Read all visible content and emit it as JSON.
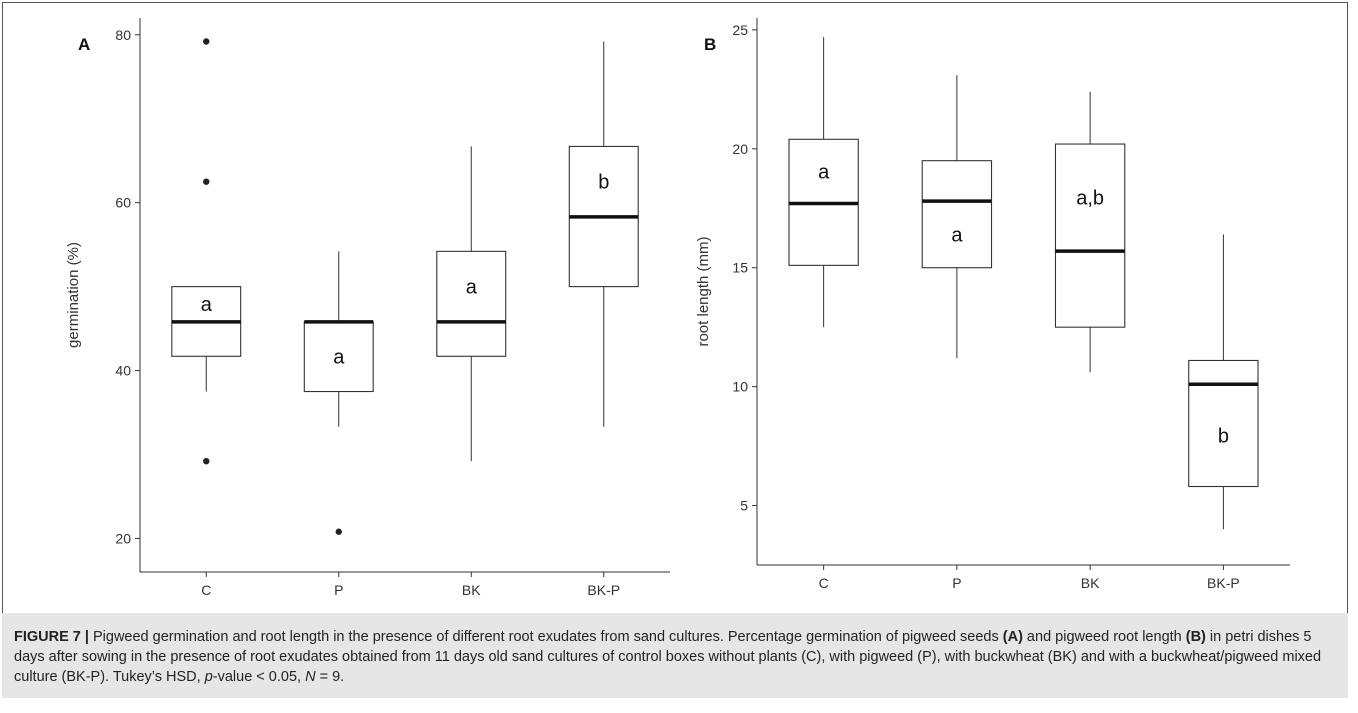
{
  "chart_data": [
    {
      "type": "box",
      "panel_label": "A",
      "xlabel": "",
      "ylabel": "germination (%)",
      "ylim": [
        16,
        82
      ],
      "yticks": [
        20,
        40,
        60,
        80
      ],
      "ytick_labels": [
        "20",
        "40",
        "60",
        "80"
      ],
      "categories": [
        "C",
        "P",
        "BK",
        "BK-P"
      ],
      "boxes": [
        {
          "category": "C",
          "whisker_low": 37.5,
          "q1": 41.7,
          "median": 45.8,
          "q3": 50.0,
          "whisker_high": 50.0,
          "outliers": [
            79.2,
            62.5,
            29.2
          ],
          "group_letter": "a"
        },
        {
          "category": "P",
          "whisker_low": 33.3,
          "q1": 37.5,
          "median": 45.8,
          "q3": 45.8,
          "whisker_high": 54.2,
          "outliers": [
            20.8
          ],
          "group_letter": "a"
        },
        {
          "category": "BK",
          "whisker_low": 29.2,
          "q1": 41.7,
          "median": 45.8,
          "q3": 54.2,
          "whisker_high": 66.7,
          "outliers": [],
          "group_letter": "a"
        },
        {
          "category": "BK-P",
          "whisker_low": 33.3,
          "q1": 50.0,
          "median": 58.3,
          "q3": 66.7,
          "whisker_high": 79.2,
          "outliers": [],
          "group_letter": "b"
        }
      ],
      "grid": false
    },
    {
      "type": "box",
      "panel_label": "B",
      "xlabel": "",
      "ylabel": "root length (mm)",
      "ylim": [
        2.5,
        25.5
      ],
      "yticks": [
        5,
        10,
        15,
        20,
        25
      ],
      "ytick_labels": [
        "5",
        "10",
        "15",
        "20",
        "25"
      ],
      "categories": [
        "C",
        "P",
        "BK",
        "BK-P"
      ],
      "boxes": [
        {
          "category": "C",
          "whisker_low": 12.5,
          "q1": 15.1,
          "median": 17.7,
          "q3": 20.4,
          "whisker_high": 24.7,
          "outliers": [],
          "group_letter": "a"
        },
        {
          "category": "P",
          "whisker_low": 11.2,
          "q1": 15.0,
          "median": 17.8,
          "q3": 19.5,
          "whisker_high": 23.1,
          "outliers": [],
          "group_letter": "a"
        },
        {
          "category": "BK",
          "whisker_low": 10.6,
          "q1": 12.5,
          "median": 15.7,
          "q3": 20.2,
          "whisker_high": 22.4,
          "outliers": [],
          "group_letter": "a,b"
        },
        {
          "category": "BK-P",
          "whisker_low": 4.0,
          "q1": 5.8,
          "median": 10.1,
          "q3": 11.1,
          "whisker_high": 16.4,
          "outliers": [],
          "group_letter": "b"
        }
      ],
      "grid": false
    }
  ],
  "caption": {
    "figure_label": "FIGURE 7 |",
    "text_1": " Pigweed germination and root length in the presence of different root exudates from sand cultures. Percentage germination of pigweed seeds ",
    "bold_a": "(A)",
    "text_2": " and pigweed root length ",
    "bold_b": "(B)",
    "text_3": " in petri dishes 5 days after sowing in the presence of root exudates obtained from 11 days old sand cultures of control boxes without plants (C), with pigweed (P), with buckwheat (BK) and with a buckwheat/pigweed mixed culture (BK-P). Tukey’s HSD, ",
    "italic_p": "p",
    "text_4": "-value < 0.05, ",
    "italic_n": "N",
    "text_5": " = 9."
  },
  "colors": {
    "frame": "#555555",
    "box_stroke": "#333333",
    "median": "#111111",
    "outlier": "#222222",
    "caption_bg": "#e6e6e6"
  }
}
